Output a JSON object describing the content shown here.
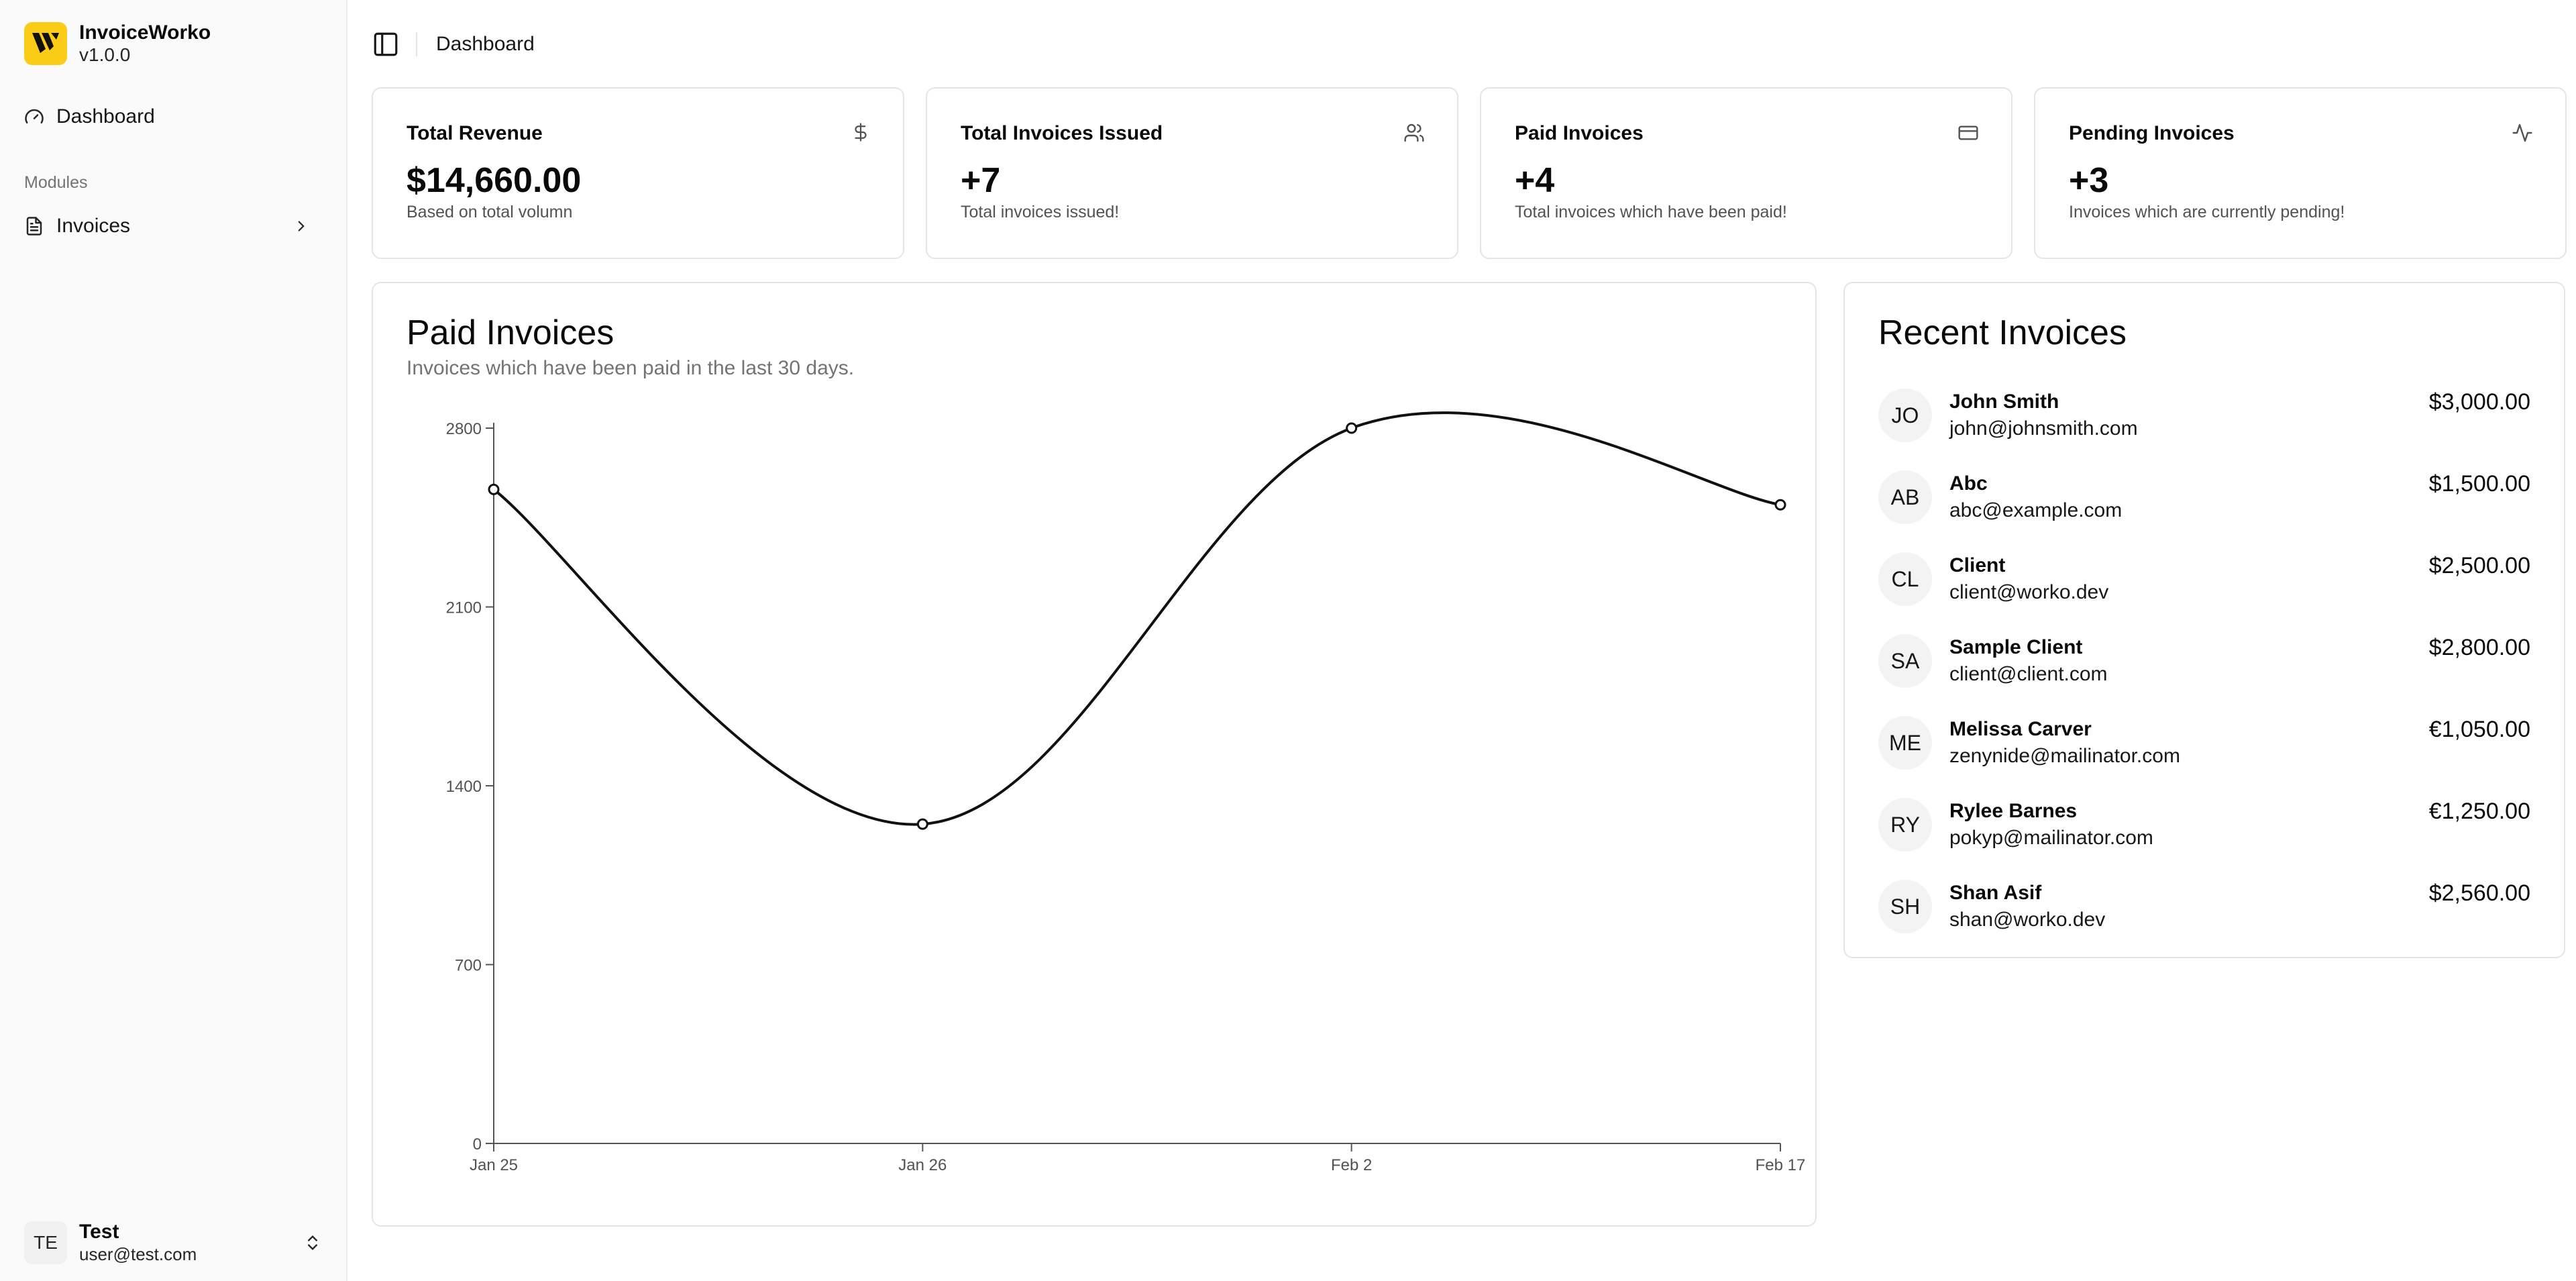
{
  "app": {
    "name": "InvoiceWorko",
    "version": "v1.0.0"
  },
  "sidebar": {
    "dashboard_label": "Dashboard",
    "section_label": "Modules",
    "invoices_label": "Invoices"
  },
  "user": {
    "initials": "TE",
    "name": "Test",
    "email": "user@test.com"
  },
  "topbar": {
    "breadcrumb": "Dashboard"
  },
  "stats": [
    {
      "title": "Total Revenue",
      "value": "$14,660.00",
      "sub": "Based on total volumn",
      "icon": "dollar-icon"
    },
    {
      "title": "Total Invoices Issued",
      "value": "+7",
      "sub": "Total invoices issued!",
      "icon": "users-icon"
    },
    {
      "title": "Paid Invoices",
      "value": "+4",
      "sub": "Total invoices which have been paid!",
      "icon": "credit-card-icon"
    },
    {
      "title": "Pending Invoices",
      "value": "+3",
      "sub": "Invoices which are currently pending!",
      "icon": "activity-icon"
    }
  ],
  "paid_chart": {
    "title": "Paid Invoices",
    "subtitle": "Invoices which have been paid in the last 30 days."
  },
  "chart_data": {
    "type": "line",
    "title": "Paid Invoices",
    "x": [
      "Jan 25",
      "Jan 26",
      "Feb 2",
      "Feb 17"
    ],
    "series": [
      {
        "values": [
          2560,
          1250,
          2800,
          2500
        ]
      }
    ],
    "yticks": [
      0,
      700,
      1400,
      2100,
      2800
    ],
    "ylim": [
      0,
      2800
    ],
    "grid": false,
    "curve": "smooth"
  },
  "recent": {
    "title": "Recent Invoices",
    "items": [
      {
        "initials": "JO",
        "name": "John Smith",
        "email": "john@johnsmith.com",
        "amount": "$3,000.00"
      },
      {
        "initials": "AB",
        "name": "Abc",
        "email": "abc@example.com",
        "amount": "$1,500.00"
      },
      {
        "initials": "CL",
        "name": "Client",
        "email": "client@worko.dev",
        "amount": "$2,500.00"
      },
      {
        "initials": "SA",
        "name": "Sample Client",
        "email": "client@client.com",
        "amount": "$2,800.00"
      },
      {
        "initials": "ME",
        "name": "Melissa Carver",
        "email": "zenynide@mailinator.com",
        "amount": "€1,050.00"
      },
      {
        "initials": "RY",
        "name": "Rylee Barnes",
        "email": "pokyp@mailinator.com",
        "amount": "€1,250.00"
      },
      {
        "initials": "SH",
        "name": "Shan Asif",
        "email": "shan@worko.dev",
        "amount": "$2,560.00"
      }
    ]
  }
}
